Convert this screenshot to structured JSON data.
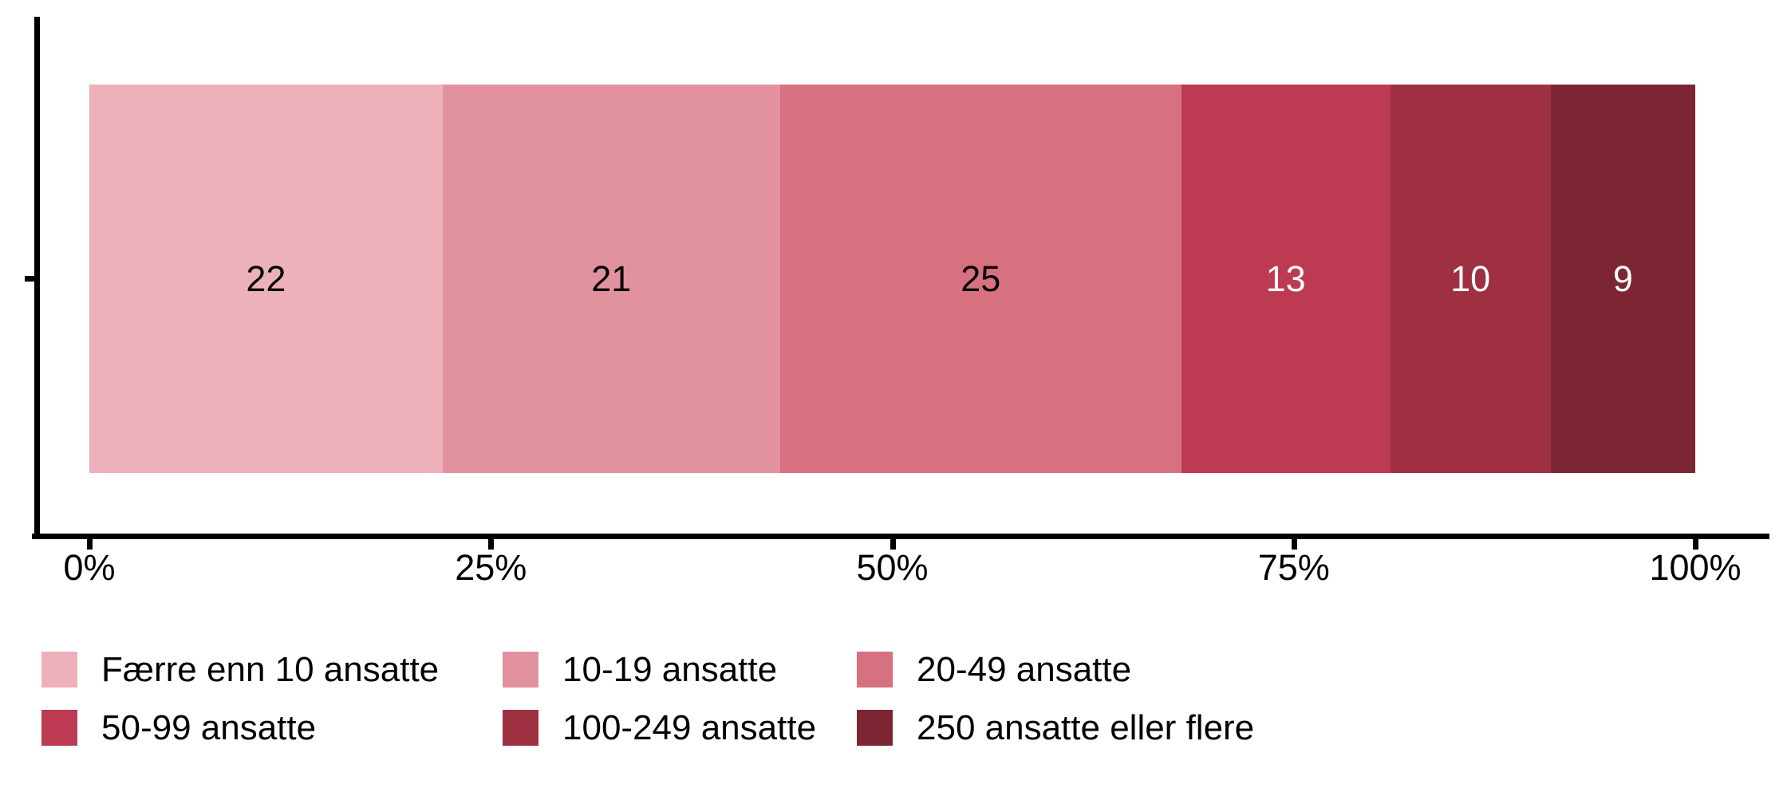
{
  "chart_data": {
    "type": "bar",
    "orientation": "horizontal",
    "stacked": true,
    "percent_scale": true,
    "title": "",
    "xlabel": "",
    "ylabel": "",
    "xlim": [
      0,
      100
    ],
    "grid": false,
    "categories": [
      ""
    ],
    "series": [
      {
        "name": "Færre enn 10 ansatte",
        "value": 22,
        "color": "#ecb1bb",
        "label_color": "#000000"
      },
      {
        "name": "10-19 ansatte",
        "value": 21,
        "color": "#e1929e",
        "label_color": "#000000"
      },
      {
        "name": "20-49 ansatte",
        "value": 25,
        "color": "#d7717f",
        "label_color": "#000000"
      },
      {
        "name": "50-99 ansatte",
        "value": 13,
        "color": "#bc3a52",
        "label_color": "#ffffff"
      },
      {
        "name": "100-249 ansatte",
        "value": 10,
        "color": "#9e3041",
        "label_color": "#ffffff"
      },
      {
        "name": "250 ansatte eller flere",
        "value": 9,
        "color": "#7c2633",
        "label_color": "#ffffff"
      }
    ],
    "x_ticks": [
      "0%",
      "25%",
      "50%",
      "75%",
      "100%"
    ],
    "legend_position": "bottom",
    "legend_layout": "2 rows x 3 columns",
    "axis_color": "#000000",
    "text_color": "#000000"
  }
}
